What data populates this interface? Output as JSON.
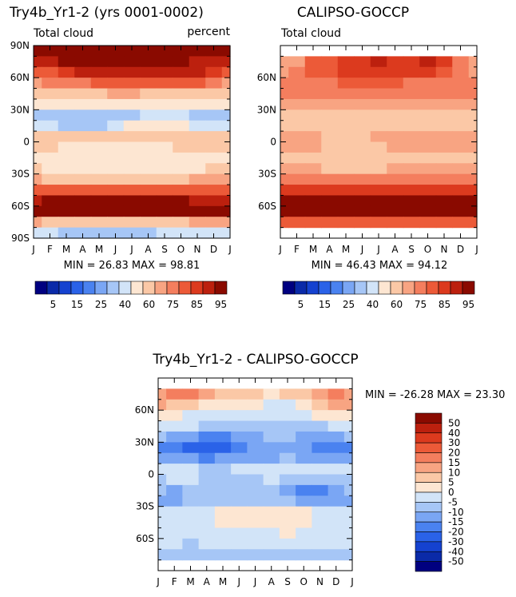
{
  "chart_data": [
    {
      "type": "heatmap",
      "title": "Try4b_Yr1-2 (yrs 0001-0002)",
      "subtitle_left": "Total cloud",
      "subtitle_right": "percent",
      "stats": "MIN =  26.83  MAX =  98.81",
      "x": [
        "J",
        "F",
        "M",
        "A",
        "M",
        "J",
        "J",
        "A",
        "S",
        "O",
        "N",
        "D",
        "J"
      ],
      "y_ticks": [
        "90N",
        "60N",
        "30N",
        "0",
        "30S",
        "60S",
        "90S"
      ],
      "ylim": [
        -90,
        90
      ],
      "lat_rows": [
        85,
        75,
        65,
        55,
        45,
        35,
        25,
        15,
        5,
        -5,
        -15,
        -25,
        -35,
        -45,
        -55,
        -65,
        -75,
        -85
      ],
      "values": [
        [
          88,
          90,
          93,
          95,
          97,
          98,
          98,
          98,
          97,
          95,
          92,
          90,
          88
        ],
        [
          80,
          82,
          85,
          87,
          89,
          90,
          89,
          87,
          85,
          85,
          84,
          82,
          80
        ],
        [
          72,
          74,
          77,
          80,
          82,
          84,
          82,
          80,
          80,
          82,
          80,
          76,
          72
        ],
        [
          64,
          65,
          67,
          69,
          70,
          71,
          71,
          70,
          70,
          71,
          70,
          67,
          64
        ],
        [
          55,
          56,
          57,
          58,
          59,
          60,
          60,
          59,
          58,
          57,
          56,
          55,
          55
        ],
        [
          42,
          41,
          40,
          40,
          41,
          42,
          43,
          44,
          44,
          43,
          42,
          42,
          42
        ],
        [
          32,
          31,
          30,
          31,
          32,
          33,
          34,
          36,
          36,
          35,
          33,
          32,
          32
        ],
        [
          38,
          36,
          34,
          33,
          34,
          37,
          40,
          42,
          42,
          40,
          38,
          38,
          38
        ],
        [
          56,
          54,
          52,
          50,
          50,
          52,
          55,
          57,
          58,
          57,
          55,
          56,
          56
        ],
        [
          52,
          50,
          48,
          46,
          46,
          47,
          48,
          48,
          48,
          50,
          51,
          52,
          52
        ],
        [
          44,
          42,
          41,
          40,
          40,
          41,
          41,
          42,
          42,
          43,
          44,
          44,
          44
        ],
        [
          50,
          48,
          47,
          46,
          45,
          44,
          45,
          46,
          47,
          48,
          49,
          50,
          50
        ],
        [
          60,
          59,
          58,
          57,
          56,
          56,
          57,
          58,
          59,
          59,
          60,
          60,
          60
        ],
        [
          74,
          74,
          73,
          73,
          72,
          72,
          73,
          73,
          74,
          74,
          74,
          74,
          74
        ],
        [
          84,
          85,
          86,
          86,
          87,
          87,
          87,
          86,
          86,
          85,
          84,
          84,
          84
        ],
        [
          86,
          87,
          88,
          89,
          89,
          88,
          87,
          88,
          88,
          87,
          86,
          86,
          86
        ],
        [
          60,
          58,
          55,
          52,
          50,
          50,
          52,
          54,
          56,
          58,
          60,
          60,
          60
        ],
        [
          38,
          36,
          34,
          33,
          32,
          32,
          33,
          34,
          35,
          36,
          37,
          38,
          38
        ]
      ]
    },
    {
      "type": "heatmap",
      "title": "CALIPSO-GOCCP",
      "subtitle_left": "Total cloud",
      "stats": "MIN =  46.43  MAX =  94.12",
      "x": [
        "J",
        "F",
        "M",
        "A",
        "M",
        "J",
        "J",
        "A",
        "S",
        "O",
        "N",
        "D",
        "J"
      ],
      "y_ticks": [
        "60N",
        "30N",
        "0",
        "30S",
        "60S"
      ],
      "ylim": [
        -90,
        90
      ],
      "lat_rows": [
        75,
        65,
        55,
        45,
        35,
        25,
        15,
        5,
        -5,
        -15,
        -25,
        -35,
        -45,
        -55,
        -65,
        -75
      ],
      "values": [
        [
          62,
          64,
          70,
          74,
          76,
          78,
          80,
          78,
          78,
          80,
          76,
          68,
          62
        ],
        [
          64,
          66,
          70,
          73,
          75,
          76,
          78,
          76,
          75,
          76,
          72,
          68,
          64
        ],
        [
          66,
          67,
          68,
          69,
          70,
          70,
          70,
          70,
          69,
          69,
          68,
          67,
          66
        ],
        [
          66,
          66,
          67,
          67,
          68,
          68,
          68,
          68,
          67,
          67,
          66,
          66,
          66
        ],
        [
          64,
          64,
          63,
          63,
          62,
          62,
          63,
          64,
          64,
          64,
          63,
          64,
          64
        ],
        [
          55,
          54,
          52,
          51,
          52,
          54,
          55,
          56,
          55,
          54,
          54,
          55,
          55
        ],
        [
          53,
          52,
          51,
          51,
          52,
          53,
          54,
          55,
          56,
          55,
          54,
          53,
          53
        ],
        [
          62,
          61,
          60,
          59,
          58,
          58,
          60,
          61,
          62,
          62,
          62,
          62,
          62
        ],
        [
          62,
          61,
          60,
          59,
          58,
          58,
          58,
          60,
          61,
          62,
          62,
          62,
          62
        ],
        [
          58,
          57,
          56,
          55,
          54,
          54,
          54,
          55,
          56,
          57,
          58,
          58,
          58
        ],
        [
          62,
          61,
          60,
          59,
          58,
          58,
          59,
          60,
          61,
          62,
          62,
          62,
          62
        ],
        [
          67,
          67,
          66,
          66,
          65,
          65,
          66,
          66,
          67,
          67,
          67,
          67,
          67
        ],
        [
          76,
          76,
          77,
          77,
          78,
          78,
          77,
          77,
          76,
          76,
          76,
          76,
          76
        ],
        [
          86,
          87,
          88,
          88,
          89,
          89,
          88,
          87,
          86,
          86,
          86,
          86,
          86
        ],
        [
          89,
          90,
          91,
          91,
          91,
          90,
          90,
          90,
          90,
          90,
          89,
          89,
          89
        ],
        [
          72,
          71,
          70,
          70,
          70,
          70,
          70,
          70,
          70,
          71,
          72,
          72,
          72
        ]
      ]
    },
    {
      "type": "heatmap",
      "title": "Try4b_Yr1-2 - CALIPSO-GOCCP",
      "stats": "MIN = -26.28  MAX =  23.30",
      "x": [
        "J",
        "F",
        "M",
        "A",
        "M",
        "J",
        "J",
        "A",
        "S",
        "O",
        "N",
        "D",
        "J"
      ],
      "y_ticks": [
        "60N",
        "30N",
        "0",
        "30S",
        "60S"
      ],
      "ylim": [
        -90,
        90
      ],
      "lat_rows": [
        75,
        65,
        55,
        45,
        35,
        25,
        15,
        5,
        -5,
        -15,
        -25,
        -35,
        -45,
        -55,
        -65,
        -75
      ],
      "values": [
        [
          14,
          16,
          18,
          12,
          8,
          6,
          5,
          4,
          6,
          8,
          12,
          16,
          14
        ],
        [
          10,
          9,
          8,
          4,
          2,
          1,
          0,
          -2,
          -1,
          3,
          8,
          10,
          10
        ],
        [
          2,
          1,
          -1,
          -3,
          -4,
          -5,
          -4,
          -3,
          -2,
          -1,
          0,
          1,
          2
        ],
        [
          -2,
          -3,
          -5,
          -6,
          -7,
          -8,
          -7,
          -8,
          -9,
          -8,
          -6,
          -4,
          -2
        ],
        [
          -10,
          -11,
          -14,
          -16,
          -16,
          -15,
          -12,
          -10,
          -10,
          -12,
          -13,
          -11,
          -10
        ],
        [
          -16,
          -20,
          -23,
          -25,
          -22,
          -18,
          -15,
          -13,
          -13,
          -15,
          -18,
          -17,
          -16
        ],
        [
          -12,
          -14,
          -15,
          -16,
          -15,
          -13,
          -12,
          -11,
          -10,
          -11,
          -12,
          -12,
          -12
        ],
        [
          -3,
          -4,
          -5,
          -6,
          -6,
          -4,
          -3,
          -2,
          -2,
          -4,
          -5,
          -4,
          -3
        ],
        [
          -6,
          -5,
          -4,
          -6,
          -7,
          -8,
          -6,
          -5,
          -6,
          -9,
          -10,
          -9,
          -6
        ],
        [
          -10,
          -11,
          -10,
          -9,
          -8,
          -8,
          -9,
          -10,
          -12,
          -16,
          -17,
          -14,
          -10
        ],
        [
          -12,
          -11,
          -10,
          -9,
          -8,
          -8,
          -9,
          -9,
          -10,
          -11,
          -12,
          -12,
          -12
        ],
        [
          -4,
          -3,
          -2,
          -1,
          0,
          1,
          2,
          3,
          2,
          1,
          -1,
          -3,
          -4
        ],
        [
          -4,
          -3,
          -2,
          -1,
          0,
          1,
          2,
          2,
          1,
          0,
          -2,
          -3,
          -4
        ],
        [
          -2,
          -1,
          -2,
          -2,
          -1,
          -2,
          -1,
          -1,
          0,
          -1,
          -2,
          -2,
          -2
        ],
        [
          -4,
          -5,
          -6,
          -4,
          -3,
          -3,
          -2,
          -2,
          -2,
          -3,
          -4,
          -4,
          -4
        ],
        [
          -8,
          -9,
          -10,
          -9,
          -8,
          -7,
          -6,
          -6,
          -7,
          -8,
          -9,
          -9,
          -8
        ]
      ]
    }
  ],
  "colorbar_top": {
    "labels": [
      "5",
      "15",
      "25",
      "40",
      "60",
      "75",
      "85",
      "95"
    ],
    "colors": [
      "#000080",
      "#0a2aa8",
      "#1542d0",
      "#2a62e8",
      "#4a82f0",
      "#7aa6f4",
      "#a6c6f6",
      "#d2e4f8",
      "#fde6d2",
      "#fbc8a6",
      "#f8a482",
      "#f47e5e",
      "#ec5a38",
      "#dc3a1e",
      "#bc200e",
      "#8a0a00"
    ],
    "bounds": [
      -5,
      5,
      10,
      15,
      20,
      25,
      30,
      35,
      40,
      50,
      60,
      65,
      70,
      75,
      80,
      85,
      90,
      95,
      105
    ]
  },
  "colorbar_bottom": {
    "labels": [
      "50",
      "40",
      "30",
      "20",
      "15",
      "10",
      "5",
      "0",
      "-5",
      "-10",
      "-15",
      "-20",
      "-30",
      "-40",
      "-50"
    ],
    "colors": [
      "#000080",
      "#0a2aa8",
      "#1542d0",
      "#2a62e8",
      "#4a82f0",
      "#7aa6f4",
      "#a6c6f6",
      "#d2e4f8",
      "#fde6d2",
      "#fbc8a6",
      "#f8a482",
      "#f47e5e",
      "#ec5a38",
      "#dc3a1e",
      "#bc200e",
      "#8a0a00"
    ],
    "bounds": [
      -100,
      -50,
      -40,
      -30,
      -20,
      -15,
      -10,
      -5,
      0,
      5,
      10,
      15,
      20,
      30,
      40,
      50,
      100
    ]
  }
}
